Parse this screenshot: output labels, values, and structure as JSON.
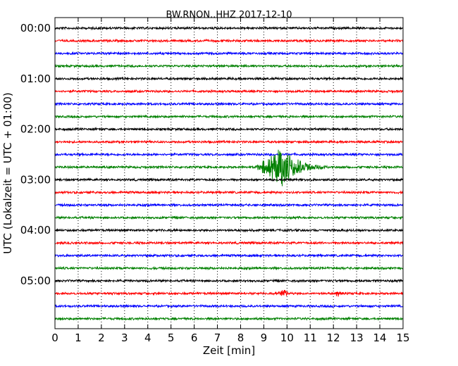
{
  "chart_data": {
    "type": "line",
    "title": "BW.RNON..HHZ 2017-12-10",
    "xlabel": "Zeit  [min]",
    "ylabel": "UTC (Lokalzeit = UTC + 01:00)",
    "xlim": [
      0,
      15
    ],
    "x_ticks": [
      "0",
      "1",
      "2",
      "3",
      "4",
      "5",
      "6",
      "7",
      "8",
      "9",
      "10",
      "11",
      "12",
      "13",
      "14",
      "15"
    ],
    "y_tick_labels": [
      "00:00",
      "01:00",
      "02:00",
      "03:00",
      "04:00",
      "05:00"
    ],
    "trace_interval_min": 15,
    "trace_count": 24,
    "grid": "vertical-dotted",
    "color_cycle": [
      "#000000",
      "#ff0000",
      "#0000ff",
      "#008000"
    ],
    "events": [
      {
        "trace": 11,
        "start_min": 8.6,
        "peak_min": 9.85,
        "end_min": 11.8,
        "peak_amplitude": 1.0
      },
      {
        "trace": 21,
        "start_min": 9.6,
        "peak_min": 9.85,
        "end_min": 10.3,
        "peak_amplitude": 0.18
      },
      {
        "trace": 21,
        "start_min": 12.0,
        "peak_min": 12.2,
        "end_min": 12.5,
        "peak_amplitude": 0.15
      }
    ]
  }
}
